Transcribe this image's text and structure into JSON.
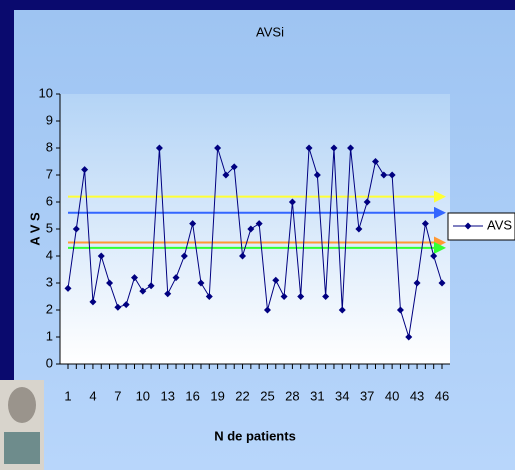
{
  "chart_data": {
    "type": "line",
    "title": "AVSi",
    "x_label": "N de patients",
    "y_label": "A V S",
    "categories": [
      1,
      null,
      null,
      4,
      null,
      null,
      7,
      null,
      null,
      10,
      null,
      null,
      13,
      null,
      null,
      16,
      null,
      null,
      19,
      null,
      null,
      22,
      null,
      null,
      25,
      null,
      null,
      28,
      null,
      null,
      31,
      null,
      null,
      34,
      null,
      null,
      37,
      null,
      null,
      40,
      null,
      null,
      43,
      null,
      null,
      46
    ],
    "series": [
      {
        "name": "AVS",
        "color": "#000080",
        "values": [
          2.8,
          5.0,
          7.2,
          2.3,
          4.0,
          3.0,
          2.1,
          2.2,
          3.2,
          2.7,
          2.9,
          8.0,
          2.6,
          3.2,
          4.0,
          5.2,
          3.0,
          2.5,
          8.0,
          7.0,
          7.3,
          4.0,
          5.0,
          5.2,
          2.0,
          3.1,
          2.5,
          6.0,
          2.5,
          8.0,
          7.0,
          2.5,
          8.0,
          2.0,
          8.0,
          5.0,
          6.0,
          7.5,
          7.0,
          7.0,
          2.0,
          1.0,
          3.0,
          5.2,
          4.0,
          3.0
        ]
      }
    ],
    "horizontal_lines": [
      {
        "value": 6.2,
        "color": "#ffff33"
      },
      {
        "value": 5.6,
        "color": "#3366ff"
      },
      {
        "value": 4.5,
        "color": "#ff9933"
      },
      {
        "value": 4.3,
        "color": "#33ff33"
      }
    ],
    "ylim": [
      0,
      10
    ],
    "yticks": [
      0,
      1,
      2,
      3,
      4,
      5,
      6,
      7,
      8,
      9,
      10
    ],
    "grid": false,
    "legend": "right"
  }
}
